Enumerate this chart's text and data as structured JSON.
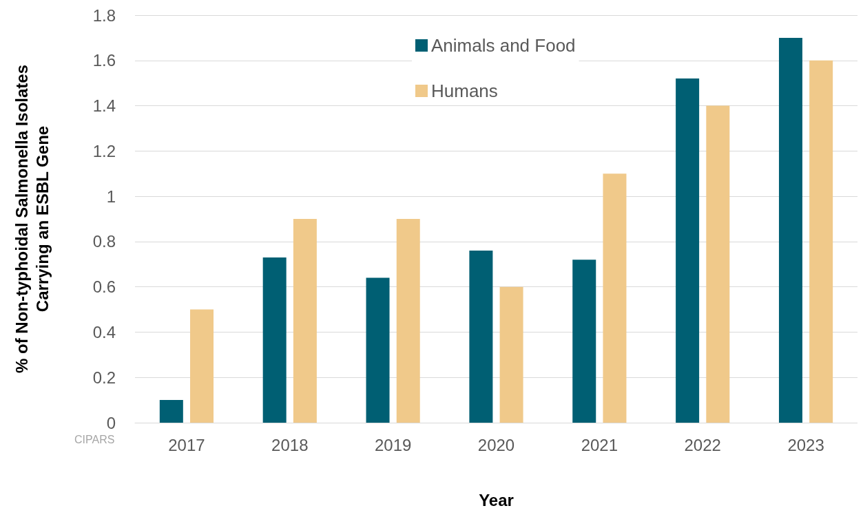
{
  "chart_data": {
    "type": "bar",
    "xlabel": "Year",
    "ylabel": "% of Non-typhoidal Salmonella Isolates\nCarrying an ESBL Gene",
    "categories": [
      "2017",
      "2018",
      "2019",
      "2020",
      "2021",
      "2022",
      "2023"
    ],
    "series": [
      {
        "name": "Animals and Food",
        "color": "#005f73",
        "values": [
          0.1,
          0.73,
          0.64,
          0.76,
          0.72,
          1.52,
          1.7
        ]
      },
      {
        "name": "Humans",
        "color": "#f0c98a",
        "values": [
          0.5,
          0.9,
          0.9,
          0.6,
          1.1,
          1.4,
          1.6
        ]
      }
    ],
    "ylim": [
      0,
      1.8
    ],
    "yticks": [
      0,
      0.2,
      0.4,
      0.6,
      0.8,
      1,
      1.2,
      1.4,
      1.6,
      1.8
    ],
    "grid": "y",
    "legend": "top",
    "annotations": [
      "CIPARS"
    ]
  }
}
